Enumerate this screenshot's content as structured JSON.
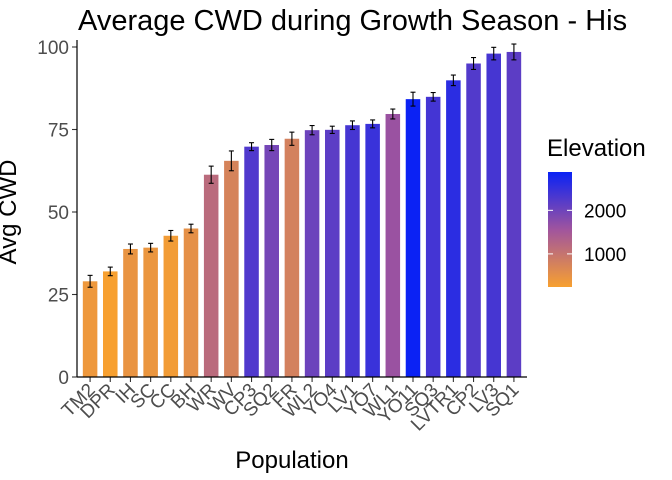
{
  "chart_data": {
    "type": "bar",
    "title": "Average CWD during Growth Season - His",
    "xlabel": "Population",
    "ylabel": "Avg CWD",
    "ylim": [
      0,
      100
    ],
    "yticks": [
      0,
      25,
      50,
      75,
      100
    ],
    "grid": false,
    "error_bars": true,
    "categories": [
      "TM2",
      "DPR",
      "IH",
      "SC",
      "CC",
      "BH",
      "WR",
      "WV",
      "CP3",
      "SQ2",
      "FR",
      "WL2",
      "YO4",
      "LV1",
      "YO7",
      "WL1",
      "YO11",
      "SQ3",
      "LVTR1",
      "CP2",
      "LV3",
      "SQ1"
    ],
    "values": [
      29,
      32,
      38.8,
      39.2,
      42.8,
      45,
      61.3,
      65.5,
      69.8,
      70.3,
      72.2,
      74.8,
      74.9,
      76.3,
      76.7,
      79.7,
      84.2,
      84.9,
      89.9,
      95.0,
      98.0,
      98.5
    ],
    "errors": [
      1.8,
      1.3,
      1.5,
      1.3,
      1.6,
      1.3,
      2.6,
      3.0,
      1.2,
      1.7,
      2.0,
      1.4,
      1.1,
      1.3,
      1.2,
      1.5,
      2.1,
      1.3,
      1.6,
      1.8,
      1.9,
      2.4
    ],
    "elevation": [
      379,
      244,
      454,
      422,
      313,
      511,
      1158,
      749,
      2266,
      1934,
      787,
      2020,
      2158,
      2353,
      2470,
      1613,
      2872,
      2373,
      2593,
      2244,
      2354,
      2158
    ],
    "legend": {
      "title": "Elevation",
      "placement": "right",
      "labels": [
        "2000",
        "1000"
      ],
      "label_values": [
        2000,
        1000
      ],
      "range": [
        240,
        2880
      ],
      "color_low": "#f7a030",
      "color_mid": "#a0549e",
      "color_high": "#0a22f5"
    }
  }
}
